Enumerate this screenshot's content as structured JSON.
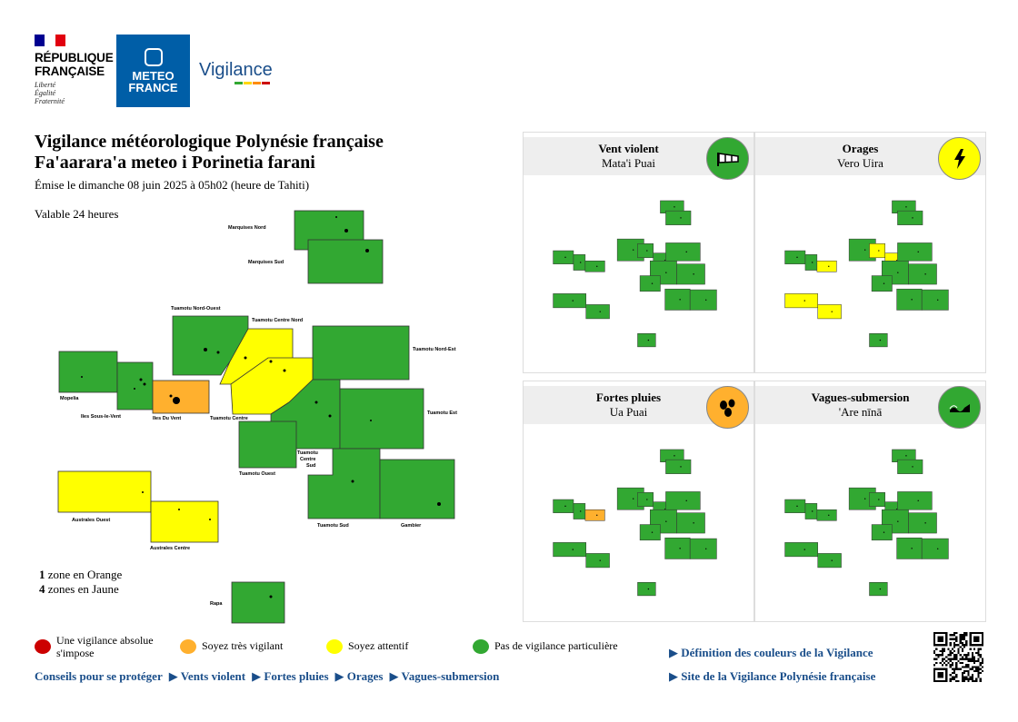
{
  "header": {
    "republic_name_line1": "RÉPUBLIQUE",
    "republic_name_line2": "FRANÇAISE",
    "motto_line1": "Liberté",
    "motto_line2": "Égalité",
    "motto_line3": "Fraternité",
    "meteo_line1": "METEO",
    "meteo_line2": "FRANCE",
    "vigilance_logo": "Vigilance"
  },
  "title": {
    "line1": "Vigilance météorologique Polynésie française",
    "line2": "Fa'aarara'a meteo i Porinetia farani",
    "issued": "Émise le dimanche 08 juin 2025 à 05h02 (heure de Tahiti)",
    "valid": "Valable 24 heures"
  },
  "colors": {
    "red": "#cc0000",
    "orange": "#ffb02e",
    "yellow": "#ffff00",
    "green": "#32a832",
    "link": "#1a4e8a"
  },
  "zones": [
    {
      "name": "Marquises Nord",
      "level": "green"
    },
    {
      "name": "Marquises Sud",
      "level": "green"
    },
    {
      "name": "Tuamotu Nord-Ouest",
      "level": "green"
    },
    {
      "name": "Tuamotu Centre Nord",
      "level": "yellow"
    },
    {
      "name": "Tuamotu Nord-Est",
      "level": "green"
    },
    {
      "name": "Mopelia",
      "level": "green"
    },
    {
      "name": "Iles Sous-le-Vent",
      "level": "green"
    },
    {
      "name": "Iles Du Vent",
      "level": "orange"
    },
    {
      "name": "Tuamotu Centre",
      "level": "yellow"
    },
    {
      "name": "Tuamotu Est",
      "level": "green"
    },
    {
      "name": "Tuamotu Ouest",
      "level": "green"
    },
    {
      "name": "Tuamotu Centre Sud",
      "level": "green"
    },
    {
      "name": "Australes Ouest",
      "level": "yellow"
    },
    {
      "name": "Tuamotu Sud",
      "level": "green"
    },
    {
      "name": "Gambier",
      "level": "green"
    },
    {
      "name": "Australes Centre",
      "level": "yellow"
    },
    {
      "name": "Rapa",
      "level": "green"
    }
  ],
  "zone_labels": {
    "marquises_nord": "Marquises Nord",
    "marquises_sud": "Marquises Sud",
    "tuamotu_no": "Tuamotu Nord-Ouest",
    "tuamotu_cn": "Tuamotu Centre Nord",
    "tuamotu_ne": "Tuamotu Nord-Est",
    "mopelia": "Mopelia",
    "isv": "Iles Sous-le-Vent",
    "idv": "Iles Du Vent",
    "tuamotu_c": "Tuamotu Centre",
    "tuamotu_e": "Tuamotu Est",
    "tuamotu_o": "Tuamotu Ouest",
    "tuamotu_cs_1": "Tuamotu",
    "tuamotu_cs_2": "Centre",
    "tuamotu_cs_3": "Sud",
    "australes_o": "Australes Ouest",
    "tuamotu_s": "Tuamotu Sud",
    "gambier": "Gambier",
    "australes_c": "Australes Centre",
    "rapa": "Rapa"
  },
  "summary": {
    "orange_count": "1",
    "orange_text": "zone en Orange",
    "yellow_count": "4",
    "yellow_text": "zones en Jaune"
  },
  "panels": [
    {
      "title": "Vent violent",
      "subtitle": "Mata'i Puai",
      "icon": "wind-sock-icon",
      "color": "#32a832",
      "levels": {
        "idv": "green",
        "isv": "green",
        "tcn": "green",
        "tc": "green",
        "ao": "green",
        "ac": "green"
      }
    },
    {
      "title": "Orages",
      "subtitle": "Vero Uira",
      "icon": "lightning-icon",
      "color": "#ffff00",
      "levels": {
        "idv": "yellow",
        "isv": "green",
        "tcn": "yellow",
        "tc": "yellow",
        "ao": "yellow",
        "ac": "yellow"
      }
    },
    {
      "title": "Fortes pluies",
      "subtitle": "Ua Puai",
      "icon": "rain-drops-icon",
      "color": "#ffb02e",
      "levels": {
        "idv": "orange",
        "isv": "green",
        "tcn": "green",
        "tc": "green",
        "ao": "green",
        "ac": "green"
      }
    },
    {
      "title": "Vagues-submersion",
      "subtitle": "'Are nīnā",
      "icon": "wave-icon",
      "color": "#32a832",
      "levels": {
        "idv": "green",
        "isv": "green",
        "tcn": "green",
        "tc": "green",
        "ao": "green",
        "ac": "green"
      }
    }
  ],
  "legend": {
    "red": "Une vigilance absolue s'impose",
    "orange": "Soyez très vigilant",
    "yellow": "Soyez attentif",
    "green": "Pas de vigilance particulière"
  },
  "links": {
    "advice": "Conseils pour se protéger",
    "wind": "▶ Vents violent",
    "rain": "▶ Fortes pluies",
    "storms": "▶ Orages",
    "waves": "▶ Vagues-submersion",
    "definition": "▶ Définition des couleurs de la Vigilance",
    "site": "▶ Site de la Vigilance Polynésie française"
  },
  "qr_icon": "qr-code-icon"
}
